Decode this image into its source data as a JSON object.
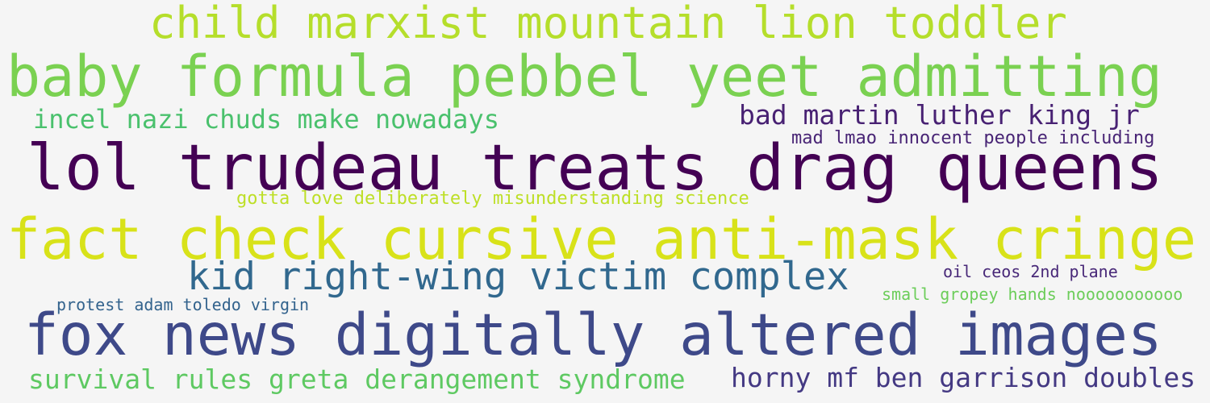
{
  "phrases": [
    {
      "text": "child marxist mountain lion toddler",
      "color": "#b5de2b"
    },
    {
      "text": "baby formula pebbel yeet admitting",
      "color": "#7ad151"
    },
    {
      "text": "incel nazi chuds make nowadays",
      "color": "#4ac16d"
    },
    {
      "text": "bad martin luther king jr",
      "color": "#482173"
    },
    {
      "text": "mad lmao innocent people including",
      "color": "#482475"
    },
    {
      "text": "lol trudeau treats drag queens",
      "color": "#440154"
    },
    {
      "text": "gotta love deliberately misunderstanding science",
      "color": "#bddf26"
    },
    {
      "text": "fact check cursive anti-mask cringe",
      "color": "#d8e219"
    },
    {
      "text": "kid right-wing victim complex",
      "color": "#31688e"
    },
    {
      "text": "oil ceos 2nd plane",
      "color": "#482878"
    },
    {
      "text": "small gropey hands nooooooooooo",
      "color": "#6ccd5a"
    },
    {
      "text": "protest adam toledo virgin",
      "color": "#33638d"
    },
    {
      "text": "fox news digitally altered images",
      "color": "#3e4989"
    },
    {
      "text": "survival rules greta derangement syndrome",
      "color": "#5ec962"
    },
    {
      "text": "horny mf ben garrison doubles",
      "color": "#443983"
    }
  ]
}
